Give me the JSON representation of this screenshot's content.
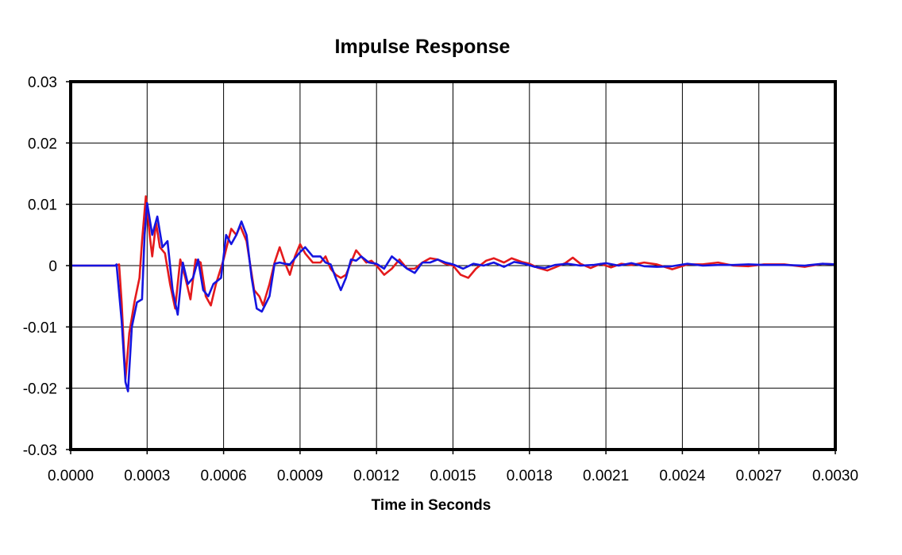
{
  "chart_data": {
    "type": "line",
    "title": "Impulse Response",
    "xlabel": "Time in Seconds",
    "ylabel": "",
    "xlim": [
      0,
      0.003
    ],
    "ylim": [
      -0.03,
      0.03
    ],
    "x_ticks": [
      "0.0000",
      "0.0003",
      "0.0006",
      "0.0009",
      "0.0012",
      "0.0015",
      "0.0018",
      "0.0021",
      "0.0024",
      "0.0027",
      "0.0030"
    ],
    "y_ticks": [
      "0.03",
      "0.02",
      "0.01",
      "0",
      "-0.01",
      "-0.02",
      "-0.03"
    ],
    "grid": true,
    "legend": "none",
    "series": [
      {
        "color": "#e41a1c",
        "points": [
          [
            0,
            0
          ],
          [
            0.00018,
            0
          ],
          [
            0.00019,
            0.0002
          ],
          [
            0.0002,
            -0.006
          ],
          [
            0.000215,
            -0.0185
          ],
          [
            0.00023,
            -0.011
          ],
          [
            0.00025,
            -0.006
          ],
          [
            0.00027,
            -0.002
          ],
          [
            0.00028,
            0.004
          ],
          [
            0.000295,
            0.0113
          ],
          [
            0.00031,
            0.005
          ],
          [
            0.00032,
            0.0015
          ],
          [
            0.000335,
            0.007
          ],
          [
            0.00035,
            0.003
          ],
          [
            0.00037,
            0.002
          ],
          [
            0.00039,
            -0.003
          ],
          [
            0.00041,
            -0.007
          ],
          [
            0.00043,
            0.001
          ],
          [
            0.00045,
            -0.002
          ],
          [
            0.00047,
            -0.0055
          ],
          [
            0.00049,
            0.001
          ],
          [
            0.00051,
            0.0005
          ],
          [
            0.00053,
            -0.005
          ],
          [
            0.00055,
            -0.0065
          ],
          [
            0.00057,
            -0.003
          ],
          [
            0.0006,
            0.001
          ],
          [
            0.00063,
            0.006
          ],
          [
            0.00065,
            0.005
          ],
          [
            0.000665,
            0.0065
          ],
          [
            0.00069,
            0.004
          ],
          [
            0.00072,
            -0.004
          ],
          [
            0.00074,
            -0.005
          ],
          [
            0.000755,
            -0.0065
          ],
          [
            0.00078,
            -0.003
          ],
          [
            0.0008,
            0.0005
          ],
          [
            0.00082,
            0.003
          ],
          [
            0.00084,
            0.0005
          ],
          [
            0.00086,
            -0.0015
          ],
          [
            0.00088,
            0.0015
          ],
          [
            0.0009,
            0.0035
          ],
          [
            0.00092,
            0.002
          ],
          [
            0.00095,
            0.0005
          ],
          [
            0.00098,
            0.0005
          ],
          [
            0.001,
            0.0015
          ],
          [
            0.00102,
            -0.0005
          ],
          [
            0.00104,
            -0.0015
          ],
          [
            0.00106,
            -0.002
          ],
          [
            0.00108,
            -0.0015
          ],
          [
            0.0011,
            0.0005
          ],
          [
            0.00112,
            0.0025
          ],
          [
            0.00114,
            0.0015
          ],
          [
            0.00116,
            0.0005
          ],
          [
            0.00118,
            0.0008
          ],
          [
            0.0012,
            0
          ],
          [
            0.00123,
            -0.0015
          ],
          [
            0.00126,
            -0.0005
          ],
          [
            0.00129,
            0.001
          ],
          [
            0.00132,
            -0.0005
          ],
          [
            0.00135,
            -0.0005
          ],
          [
            0.00138,
            0.0005
          ],
          [
            0.00141,
            0.0012
          ],
          [
            0.00144,
            0.001
          ],
          [
            0.00147,
            0.0003
          ],
          [
            0.0015,
            0
          ],
          [
            0.00153,
            -0.0015
          ],
          [
            0.00156,
            -0.002
          ],
          [
            0.00159,
            -0.0005
          ],
          [
            0.00163,
            0.0008
          ],
          [
            0.00166,
            0.0012
          ],
          [
            0.0017,
            0.0005
          ],
          [
            0.00173,
            0.0012
          ],
          [
            0.00177,
            0.0006
          ],
          [
            0.0018,
            0.0003
          ],
          [
            0.00183,
            -0.0003
          ],
          [
            0.00187,
            -0.0008
          ],
          [
            0.0019,
            -0.0003
          ],
          [
            0.00194,
            0.0004
          ],
          [
            0.00197,
            0.0013
          ],
          [
            0.002,
            0.0003
          ],
          [
            0.00204,
            -0.0004
          ],
          [
            0.00208,
            0.0003
          ],
          [
            0.00212,
            -0.0003
          ],
          [
            0.00216,
            0.0003
          ],
          [
            0.0022,
            0.0001
          ],
          [
            0.00225,
            0.0005
          ],
          [
            0.0023,
            0.0002
          ],
          [
            0.00236,
            -0.0006
          ],
          [
            0.00242,
            0.0002
          ],
          [
            0.00248,
            0.0002
          ],
          [
            0.00254,
            0.0005
          ],
          [
            0.0026,
            0
          ],
          [
            0.00266,
            -0.0001
          ],
          [
            0.00272,
            0.0002
          ],
          [
            0.0028,
            0.0002
          ],
          [
            0.00288,
            -0.0002
          ],
          [
            0.00295,
            0.0003
          ],
          [
            0.003,
            0.0002
          ]
        ]
      },
      {
        "color": "#1515e0",
        "points": [
          [
            0,
            0
          ],
          [
            0.000175,
            0
          ],
          [
            0.00018,
            0.0002
          ],
          [
            0.0002,
            -0.009
          ],
          [
            0.000215,
            -0.019
          ],
          [
            0.000225,
            -0.0205
          ],
          [
            0.00024,
            -0.01
          ],
          [
            0.00026,
            -0.006
          ],
          [
            0.00028,
            -0.0055
          ],
          [
            0.00029,
            0.005
          ],
          [
            0.0003,
            0.0102
          ],
          [
            0.00032,
            0.005
          ],
          [
            0.00034,
            0.008
          ],
          [
            0.00036,
            0.003
          ],
          [
            0.00038,
            0.004
          ],
          [
            0.0004,
            -0.004
          ],
          [
            0.00042,
            -0.008
          ],
          [
            0.00044,
            0.0005
          ],
          [
            0.00046,
            -0.003
          ],
          [
            0.00048,
            -0.002
          ],
          [
            0.0005,
            0.001
          ],
          [
            0.00052,
            -0.004
          ],
          [
            0.00054,
            -0.005
          ],
          [
            0.00056,
            -0.003
          ],
          [
            0.00059,
            -0.002
          ],
          [
            0.00061,
            0.005
          ],
          [
            0.00063,
            0.0035
          ],
          [
            0.00065,
            0.005
          ],
          [
            0.00067,
            0.0072
          ],
          [
            0.00069,
            0.005
          ],
          [
            0.00071,
            -0.002
          ],
          [
            0.00073,
            -0.007
          ],
          [
            0.00075,
            -0.0075
          ],
          [
            0.00078,
            -0.005
          ],
          [
            0.0008,
            0.0003
          ],
          [
            0.00082,
            0.0005
          ],
          [
            0.00084,
            0.0003
          ],
          [
            0.00086,
            0.0002
          ],
          [
            0.00088,
            0.0012
          ],
          [
            0.0009,
            0.0022
          ],
          [
            0.00092,
            0.003
          ],
          [
            0.00095,
            0.0015
          ],
          [
            0.00098,
            0.0015
          ],
          [
            0.001,
            0.0005
          ],
          [
            0.00102,
            0.0002
          ],
          [
            0.00104,
            -0.002
          ],
          [
            0.00106,
            -0.004
          ],
          [
            0.00108,
            -0.002
          ],
          [
            0.0011,
            0.001
          ],
          [
            0.00112,
            0.0008
          ],
          [
            0.00114,
            0.0015
          ],
          [
            0.00117,
            0.0005
          ],
          [
            0.0012,
            0.0003
          ],
          [
            0.00123,
            -0.0005
          ],
          [
            0.00126,
            0.0015
          ],
          [
            0.00129,
            0.0005
          ],
          [
            0.00132,
            -0.0005
          ],
          [
            0.00135,
            -0.0012
          ],
          [
            0.00138,
            0.0005
          ],
          [
            0.00141,
            0.0005
          ],
          [
            0.00144,
            0.001
          ],
          [
            0.00147,
            0.0005
          ],
          [
            0.0015,
            0.0002
          ],
          [
            0.00154,
            -0.0005
          ],
          [
            0.00158,
            0.0003
          ],
          [
            0.00162,
            0
          ],
          [
            0.00166,
            0.0005
          ],
          [
            0.0017,
            -0.0002
          ],
          [
            0.00174,
            0.0006
          ],
          [
            0.00178,
            0.0003
          ],
          [
            0.00182,
            -0.0002
          ],
          [
            0.00186,
            -0.0004
          ],
          [
            0.0019,
            0.0001
          ],
          [
            0.00195,
            0.0003
          ],
          [
            0.002,
            0
          ],
          [
            0.00205,
            0.0001
          ],
          [
            0.0021,
            0.0004
          ],
          [
            0.00215,
            0
          ],
          [
            0.0022,
            0.0004
          ],
          [
            0.00225,
            -0.0001
          ],
          [
            0.0023,
            -0.0002
          ],
          [
            0.00236,
            -0.0001
          ],
          [
            0.00242,
            0.0003
          ],
          [
            0.00248,
            0
          ],
          [
            0.00254,
            0.0001
          ],
          [
            0.0026,
            0.0001
          ],
          [
            0.00266,
            0.0002
          ],
          [
            0.00272,
            0.0001
          ],
          [
            0.0028,
            0.0001
          ],
          [
            0.00288,
            0
          ],
          [
            0.00295,
            0.0003
          ],
          [
            0.003,
            0.0002
          ]
        ]
      }
    ]
  }
}
